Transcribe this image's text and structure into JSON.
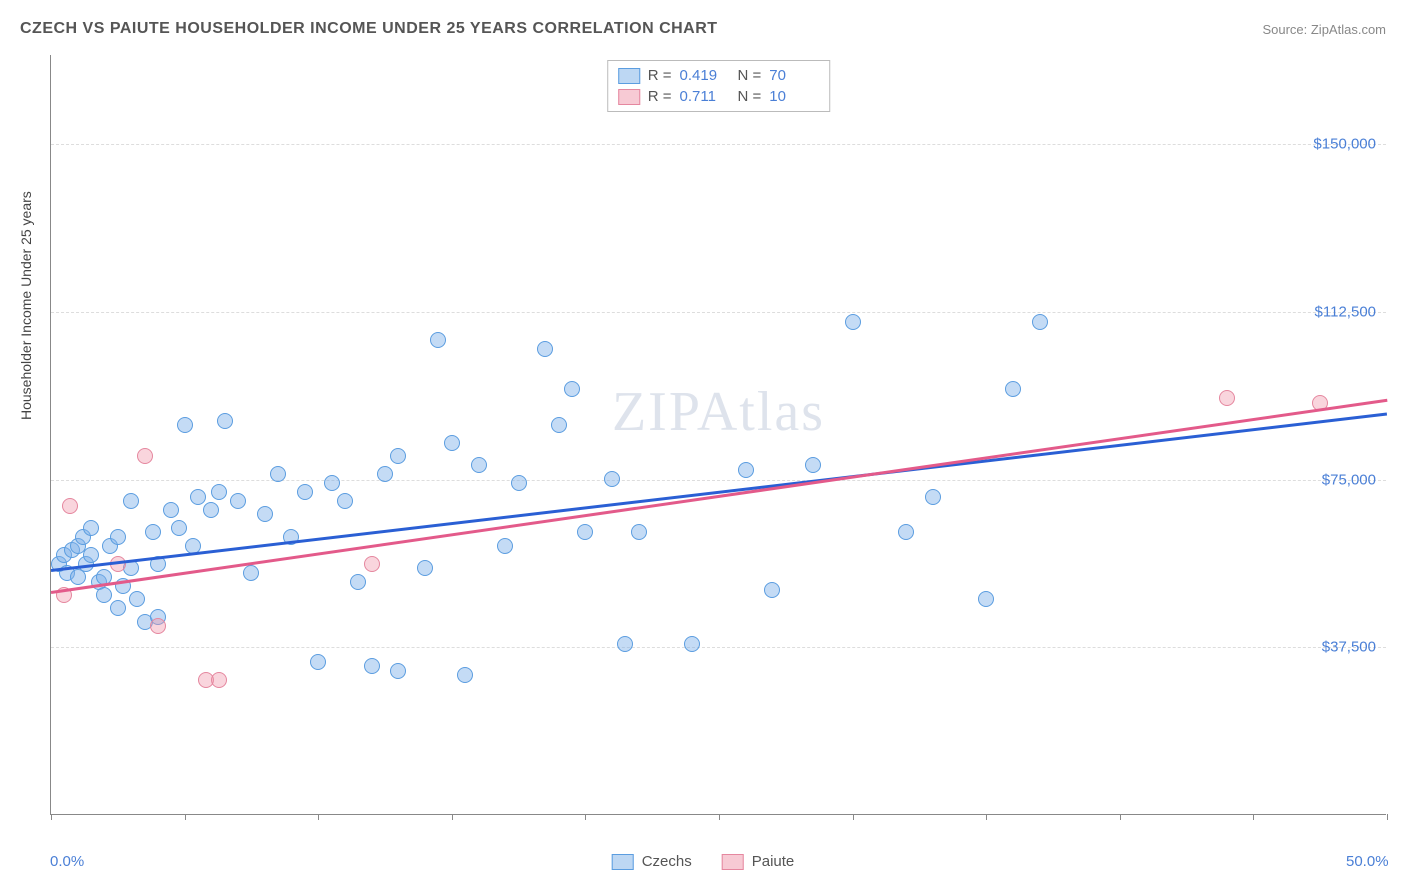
{
  "title": "CZECH VS PAIUTE HOUSEHOLDER INCOME UNDER 25 YEARS CORRELATION CHART",
  "source": "Source: ZipAtlas.com",
  "ylabel": "Householder Income Under 25 years",
  "watermark": "ZIPAtlas",
  "chart": {
    "type": "scatter",
    "xlim": [
      0,
      50
    ],
    "ylim": [
      0,
      170000
    ],
    "x_tick_step_pct": 5,
    "x_labels": [
      {
        "x": 0,
        "text": "0.0%"
      },
      {
        "x": 50,
        "text": "50.0%"
      }
    ],
    "y_ticks": [
      {
        "y": 37500,
        "text": "$37,500"
      },
      {
        "y": 75000,
        "text": "$75,000"
      },
      {
        "y": 112500,
        "text": "$112,500"
      },
      {
        "y": 150000,
        "text": "$150,000"
      }
    ],
    "grid_color": "#dddddd",
    "axis_color": "#888888",
    "background_color": "#ffffff",
    "series": {
      "czechs": {
        "label": "Czechs",
        "marker_fill": "rgba(124,176,232,0.45)",
        "marker_stroke": "#5b9de0",
        "trend_color": "#2a5fd4",
        "R": "0.419",
        "N": "70",
        "trend": {
          "x1": 0,
          "y1": 55000,
          "x2": 50,
          "y2": 90000
        },
        "points": [
          [
            0.3,
            56000
          ],
          [
            0.5,
            58000
          ],
          [
            0.6,
            54000
          ],
          [
            0.8,
            59000
          ],
          [
            1.0,
            53000
          ],
          [
            1.0,
            60000
          ],
          [
            1.2,
            62000
          ],
          [
            1.3,
            56000
          ],
          [
            1.5,
            58000
          ],
          [
            1.5,
            64000
          ],
          [
            1.8,
            52000
          ],
          [
            2.0,
            53000
          ],
          [
            2.0,
            49000
          ],
          [
            2.2,
            60000
          ],
          [
            2.5,
            46000
          ],
          [
            2.5,
            62000
          ],
          [
            2.7,
            51000
          ],
          [
            3.0,
            55000
          ],
          [
            3.0,
            70000
          ],
          [
            3.2,
            48000
          ],
          [
            3.5,
            43000
          ],
          [
            3.8,
            63000
          ],
          [
            4.0,
            56000
          ],
          [
            4.0,
            44000
          ],
          [
            4.5,
            68000
          ],
          [
            4.8,
            64000
          ],
          [
            5.0,
            87000
          ],
          [
            5.3,
            60000
          ],
          [
            5.5,
            71000
          ],
          [
            6.0,
            68000
          ],
          [
            6.3,
            72000
          ],
          [
            6.5,
            88000
          ],
          [
            7.0,
            70000
          ],
          [
            7.5,
            54000
          ],
          [
            8.0,
            67000
          ],
          [
            8.5,
            76000
          ],
          [
            9.0,
            62000
          ],
          [
            9.5,
            72000
          ],
          [
            10.0,
            34000
          ],
          [
            10.5,
            74000
          ],
          [
            11.0,
            70000
          ],
          [
            11.5,
            52000
          ],
          [
            12.0,
            33000
          ],
          [
            12.5,
            76000
          ],
          [
            13.0,
            80000
          ],
          [
            13.0,
            32000
          ],
          [
            14.0,
            55000
          ],
          [
            14.5,
            106000
          ],
          [
            15.0,
            83000
          ],
          [
            15.5,
            31000
          ],
          [
            16.0,
            78000
          ],
          [
            17.0,
            60000
          ],
          [
            17.5,
            74000
          ],
          [
            18.5,
            104000
          ],
          [
            19.0,
            87000
          ],
          [
            19.5,
            95000
          ],
          [
            20.0,
            63000
          ],
          [
            21.0,
            75000
          ],
          [
            21.5,
            38000
          ],
          [
            22.0,
            63000
          ],
          [
            24.0,
            38000
          ],
          [
            26.0,
            77000
          ],
          [
            27.0,
            50000
          ],
          [
            28.5,
            78000
          ],
          [
            30.0,
            110000
          ],
          [
            32.0,
            63000
          ],
          [
            33.0,
            71000
          ],
          [
            35.0,
            48000
          ],
          [
            36.0,
            95000
          ],
          [
            37.0,
            110000
          ]
        ]
      },
      "paiute": {
        "label": "Paiute",
        "marker_fill": "rgba(240,150,170,0.4)",
        "marker_stroke": "#e5879f",
        "trend_color": "#e35a8a",
        "R": "0.711",
        "N": "10",
        "trend": {
          "x1": 0,
          "y1": 50000,
          "x2": 50,
          "y2": 93000
        },
        "points": [
          [
            0.5,
            49000
          ],
          [
            0.7,
            69000
          ],
          [
            2.5,
            56000
          ],
          [
            3.5,
            80000
          ],
          [
            4.0,
            42000
          ],
          [
            5.8,
            30000
          ],
          [
            6.3,
            30000
          ],
          [
            12.0,
            56000
          ],
          [
            44.0,
            93000
          ],
          [
            47.5,
            92000
          ]
        ]
      }
    }
  },
  "legend_top": [
    {
      "swatch": "czechs",
      "r_label": "R =",
      "r_val": "0.419",
      "n_label": "N =",
      "n_val": "70"
    },
    {
      "swatch": "paiute",
      "r_label": "R =",
      "r_val": "0.711",
      "n_label": "N =",
      "n_val": "10"
    }
  ],
  "legend_bottom": [
    {
      "swatch": "czechs",
      "label": "Czechs"
    },
    {
      "swatch": "paiute",
      "label": "Paiute"
    }
  ]
}
